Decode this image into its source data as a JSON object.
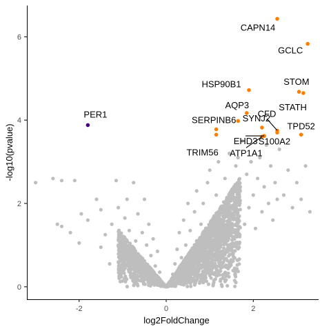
{
  "chart_data": {
    "type": "scatter",
    "title": "",
    "xlabel": "log2FoldChange",
    "ylabel": "-log10(pvalue)",
    "xlim": [
      -3.2,
      3.5
    ],
    "ylim": [
      -0.3,
      6.75
    ],
    "x_ticks": [
      {
        "value": -2,
        "label": "-2"
      },
      {
        "value": 0,
        "label": "0"
      },
      {
        "value": 2,
        "label": "2"
      }
    ],
    "y_ticks": [
      {
        "value": 0,
        "label": "0"
      },
      {
        "value": 2,
        "label": "2"
      },
      {
        "value": 4,
        "label": "4"
      },
      {
        "value": 6,
        "label": "6"
      }
    ],
    "grid": false,
    "legend": "none",
    "colors": {
      "non_significant": "#bebebe",
      "up": "#ff7f00",
      "down": "#4b0082"
    },
    "background_points": [
      [
        -3.0,
        2.5
      ],
      [
        -2.6,
        2.6
      ],
      [
        -2.4,
        2.55
      ],
      [
        -2.5,
        1.5
      ],
      [
        -2.4,
        1.45
      ],
      [
        -2.1,
        2.55
      ],
      [
        -2.2,
        1.3
      ],
      [
        -2.0,
        1.05
      ],
      [
        -1.95,
        1.75
      ],
      [
        -1.8,
        1.6
      ],
      [
        -1.6,
        2.1
      ],
      [
        -1.5,
        1.85
      ],
      [
        -1.5,
        0.95
      ],
      [
        -1.4,
        1.25
      ],
      [
        -1.3,
        0.55
      ],
      [
        -1.25,
        1.5
      ],
      [
        -1.15,
        2.55
      ],
      [
        -1.1,
        1.9
      ],
      [
        -1.05,
        1.2
      ],
      [
        -1.0,
        0.8
      ],
      [
        -0.95,
        1.65
      ],
      [
        -0.9,
        2.1
      ],
      [
        -0.85,
        1.35
      ],
      [
        -0.8,
        0.95
      ],
      [
        -0.75,
        2.5
      ],
      [
        -0.7,
        1.1
      ],
      [
        -0.65,
        1.75
      ],
      [
        -0.6,
        0.7
      ],
      [
        -0.55,
        1.3
      ],
      [
        -0.5,
        2.1
      ],
      [
        -0.5,
        0.5
      ],
      [
        -0.45,
        1.0
      ],
      [
        -0.4,
        1.5
      ],
      [
        -0.4,
        0.35
      ],
      [
        -0.35,
        0.75
      ],
      [
        -0.3,
        1.15
      ],
      [
        -0.3,
        0.25
      ],
      [
        -0.25,
        0.5
      ],
      [
        -0.2,
        0.85
      ],
      [
        -0.2,
        0.15
      ],
      [
        -0.15,
        0.35
      ],
      [
        -0.1,
        0.1
      ],
      [
        -0.05,
        0.03
      ],
      [
        0.0,
        0.0
      ],
      [
        0.05,
        0.05
      ],
      [
        0.1,
        0.12
      ],
      [
        0.15,
        0.3
      ],
      [
        0.2,
        0.55
      ],
      [
        0.25,
        0.9
      ],
      [
        0.3,
        0.4
      ],
      [
        0.3,
        1.3
      ],
      [
        0.35,
        0.7
      ],
      [
        0.4,
        1.6
      ],
      [
        0.45,
        1.0
      ],
      [
        0.5,
        2.0
      ],
      [
        0.5,
        0.5
      ],
      [
        0.55,
        1.35
      ],
      [
        0.6,
        0.8
      ],
      [
        0.65,
        1.8
      ],
      [
        0.7,
        2.3
      ],
      [
        0.7,
        1.1
      ],
      [
        0.75,
        0.6
      ],
      [
        0.8,
        1.5
      ],
      [
        0.85,
        2.0
      ],
      [
        0.9,
        0.9
      ],
      [
        0.95,
        2.5
      ],
      [
        1.0,
        1.3
      ],
      [
        1.0,
        2.8
      ],
      [
        1.05,
        0.75
      ],
      [
        1.1,
        1.7
      ],
      [
        1.15,
        2.2
      ],
      [
        1.2,
        3.0
      ],
      [
        1.25,
        1.0
      ],
      [
        1.3,
        1.9
      ],
      [
        1.35,
        2.6
      ],
      [
        1.4,
        1.4
      ],
      [
        1.45,
        3.2
      ],
      [
        1.5,
        2.1
      ],
      [
        1.55,
        1.2
      ],
      [
        1.6,
        2.9
      ],
      [
        1.65,
        1.7
      ],
      [
        1.7,
        2.4
      ],
      [
        1.75,
        3.5
      ],
      [
        1.8,
        1.5
      ],
      [
        1.85,
        2.7
      ],
      [
        1.9,
        1.9
      ],
      [
        1.95,
        3.0
      ],
      [
        2.0,
        2.2
      ],
      [
        2.05,
        1.4
      ],
      [
        2.1,
        2.6
      ],
      [
        2.15,
        3.1
      ],
      [
        2.2,
        1.8
      ],
      [
        2.25,
        2.4
      ],
      [
        2.3,
        3.4
      ],
      [
        2.35,
        2.0
      ],
      [
        2.4,
        2.9
      ],
      [
        2.45,
        1.6
      ],
      [
        2.5,
        2.5
      ],
      [
        2.55,
        2.1
      ],
      [
        2.6,
        3.3
      ],
      [
        2.7,
        2.2
      ],
      [
        2.8,
        2.8
      ],
      [
        2.9,
        1.9
      ],
      [
        3.0,
        2.5
      ],
      [
        3.1,
        2.1
      ],
      [
        3.2,
        2.9
      ],
      [
        3.3,
        1.8
      ],
      [
        1.65,
        3.1
      ]
    ],
    "labeled_points": [
      {
        "gene": "CAPN14",
        "x": 2.55,
        "y": 6.43,
        "group": "up"
      },
      {
        "gene": "GCLC",
        "x": 3.25,
        "y": 5.83,
        "group": "up"
      },
      {
        "gene": "HSP90B1",
        "x": 1.9,
        "y": 4.72,
        "group": "up"
      },
      {
        "gene": "STOM",
        "x": 3.15,
        "y": 4.65,
        "group": "up"
      },
      {
        "gene": "STATH",
        "x": 3.05,
        "y": 4.68,
        "group": "up"
      },
      {
        "gene": "AQP3",
        "x": 1.85,
        "y": 4.17,
        "group": "up"
      },
      {
        "gene": "CFD",
        "x": 2.55,
        "y": 3.75,
        "group": "up"
      },
      {
        "gene": "SERPINB6",
        "x": 1.65,
        "y": 3.98,
        "group": "up"
      },
      {
        "gene": "SYNJ2",
        "x": 2.2,
        "y": 3.82,
        "group": "up"
      },
      {
        "gene": "TPD52",
        "x": 3.1,
        "y": 3.65,
        "group": "up"
      },
      {
        "gene": "EHD3",
        "x": 2.25,
        "y": 3.62,
        "group": "up"
      },
      {
        "gene": "TRIM56",
        "x": 1.15,
        "y": 3.65,
        "group": "up"
      },
      {
        "gene": "ATP1A1",
        "x": 2.2,
        "y": 3.6,
        "group": "up"
      },
      {
        "gene": "S100A2",
        "x": 2.55,
        "y": 3.7,
        "group": "up"
      },
      {
        "gene": "PER1",
        "x": -1.8,
        "y": 3.88,
        "group": "down"
      }
    ],
    "unlabeled_highlight_points": [
      {
        "x": 1.15,
        "y": 3.78,
        "group": "up"
      }
    ]
  }
}
